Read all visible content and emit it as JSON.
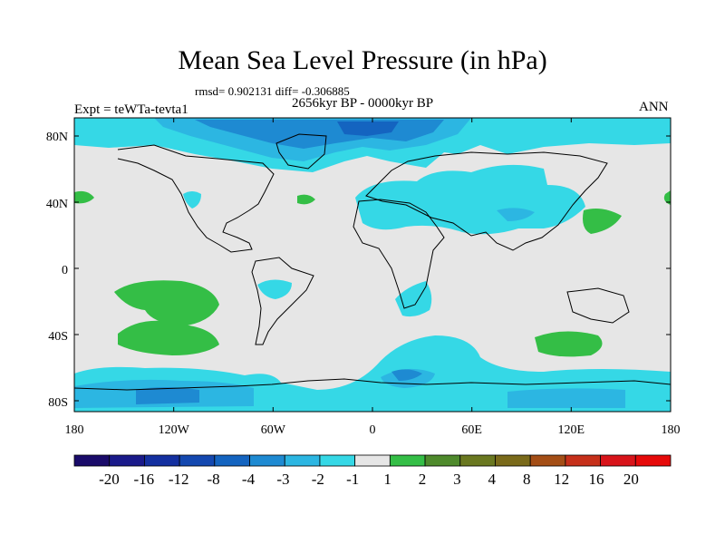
{
  "title": "Mean Sea Level Pressure (in hPa)",
  "stats": "rmsd= 0.902131 diff= -0.306885",
  "period": "2656kyr BP - 0000kyr BP",
  "experiment": "Expt = teWTa-tevta1",
  "season": "ANN",
  "lat_labels": [
    "80N",
    "40N",
    "0",
    "40S",
    "80S"
  ],
  "lon_labels": [
    "180",
    "120W",
    "60W",
    "0",
    "60E",
    "120E",
    "180"
  ],
  "colorbar": {
    "labels": [
      "-20",
      "-16",
      "-12",
      "-8",
      "-4",
      "-3",
      "-2",
      "-1",
      "1",
      "2",
      "3",
      "4",
      "8",
      "12",
      "16",
      "20"
    ],
    "colors": [
      "#1a0b6a",
      "#1a1a8a",
      "#1430a0",
      "#1448b0",
      "#1464c0",
      "#1e8ad2",
      "#2cb6e2",
      "#35d8e6",
      "#e6e6e6",
      "#34be46",
      "#4e8a2c",
      "#6a7820",
      "#7a6a1a",
      "#a44e16",
      "#c6301a",
      "#d8141a",
      "#e60a0a"
    ]
  },
  "palette": {
    "neutral": "#e6e6e6",
    "cyan": "#35d8e6",
    "light_blue": "#2cb6e2",
    "blue": "#1e8ad2",
    "dark_blue": "#1464c0",
    "green": "#34be46"
  }
}
